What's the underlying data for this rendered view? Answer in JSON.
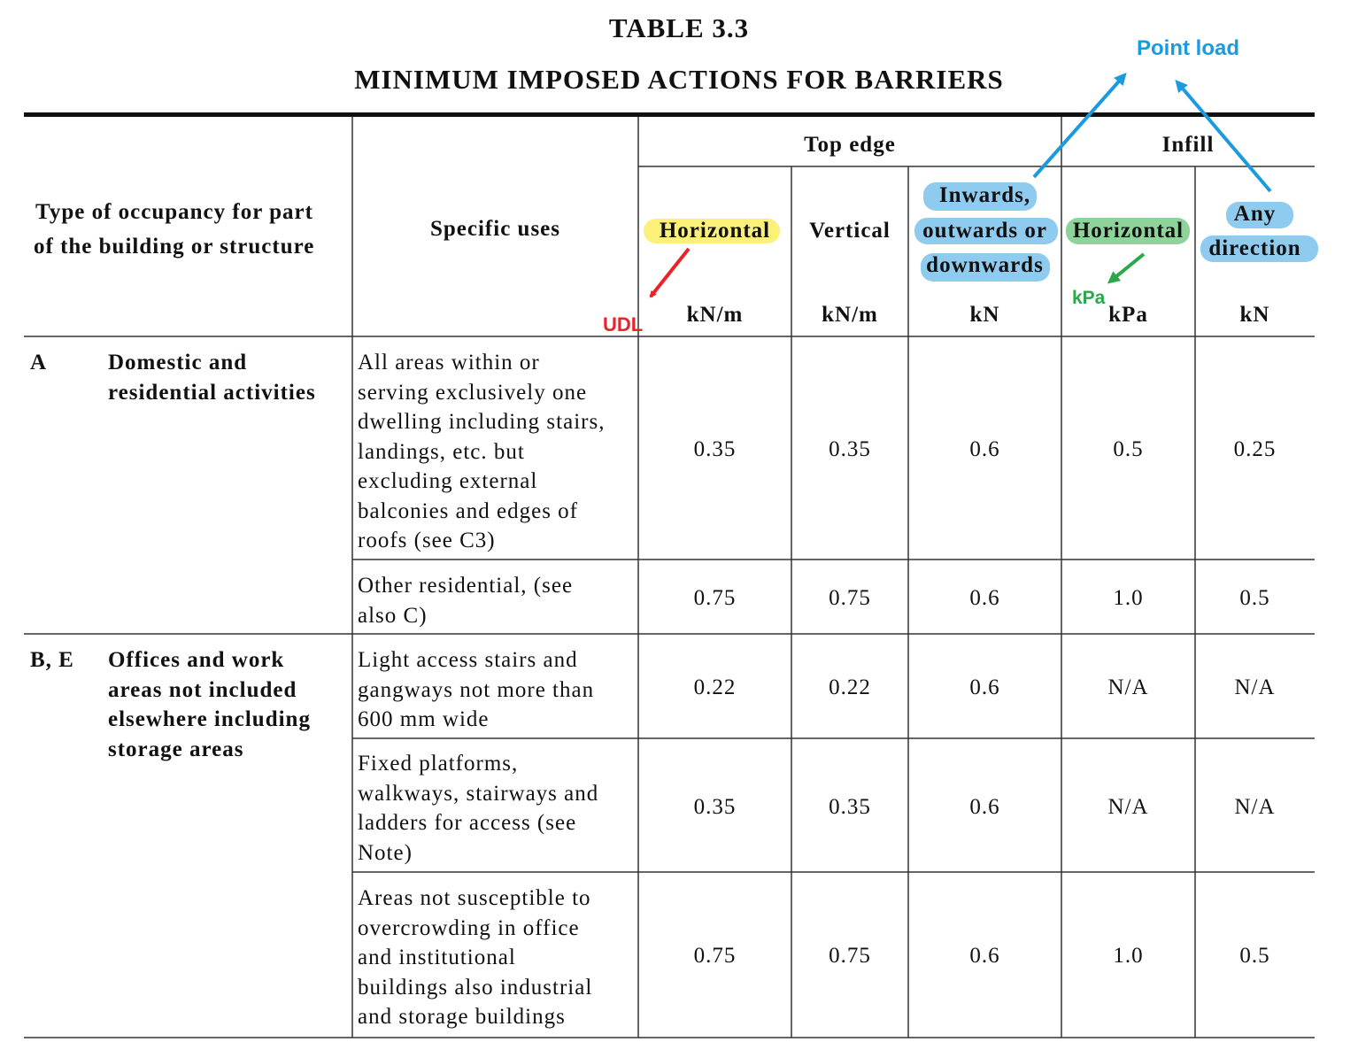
{
  "title": {
    "line1": "TABLE   3.3",
    "line2": "MINIMUM IMPOSED ACTIONS FOR BARRIERS"
  },
  "header": {
    "occupancy_line1": "Type of occupancy for part",
    "occupancy_line2": "of the building or structure",
    "specific_uses": "Specific uses",
    "group_top_edge": "Top edge",
    "group_infill": "Infill",
    "col1": "Horizontal",
    "col2": "Vertical",
    "col3_line1": "Inwards,",
    "col3_line2": "outwards or",
    "col3_line3": "downwards",
    "col4": "Horizontal",
    "col5_line1": "Any",
    "col5_line2": "direction",
    "unit1": "kN/m",
    "unit2": "kN/m",
    "unit3": "kN",
    "unit4": "kPa",
    "unit5": "kN"
  },
  "annotations": {
    "udl": "UDL",
    "point_load": "Point load",
    "kpa": "kPa",
    "udl_color": "#e8232a",
    "point_load_color": "#1a9be0",
    "kpa_color": "#2aa84a"
  },
  "groups": [
    {
      "code": "A",
      "name_line1": "Domestic and",
      "name_line2": "residential activities"
    },
    {
      "code": "B, E",
      "name_line1": "Offices and work",
      "name_line2": "areas not included",
      "name_line3": "elsewhere including",
      "name_line4": "storage areas"
    }
  ],
  "rows": [
    {
      "use": [
        "All areas within or",
        "serving exclusively one",
        "dwelling including stairs,",
        "landings, etc. but",
        "excluding external",
        "balconies and edges of",
        "roofs (see C3)"
      ],
      "values": [
        "0.35",
        "0.35",
        "0.6",
        "0.5",
        "0.25"
      ]
    },
    {
      "use": [
        "Other residential, (see",
        "also C)"
      ],
      "values": [
        "0.75",
        "0.75",
        "0.6",
        "1.0",
        "0.5"
      ]
    },
    {
      "use": [
        "Light access stairs and",
        "gangways not more than",
        "600 mm wide"
      ],
      "values": [
        "0.22",
        "0.22",
        "0.6",
        "N/A",
        "N/A"
      ]
    },
    {
      "use": [
        "Fixed platforms,",
        "walkways, stairways and",
        "ladders for access (see",
        "Note)"
      ],
      "values": [
        "0.35",
        "0.35",
        "0.6",
        "N/A",
        "N/A"
      ]
    },
    {
      "use": [
        "Areas not susceptible to",
        "overcrowding in office",
        "and institutional",
        "buildings also industrial",
        "and storage buildings"
      ],
      "values": [
        "0.75",
        "0.75",
        "0.6",
        "1.0",
        "0.5"
      ]
    }
  ]
}
